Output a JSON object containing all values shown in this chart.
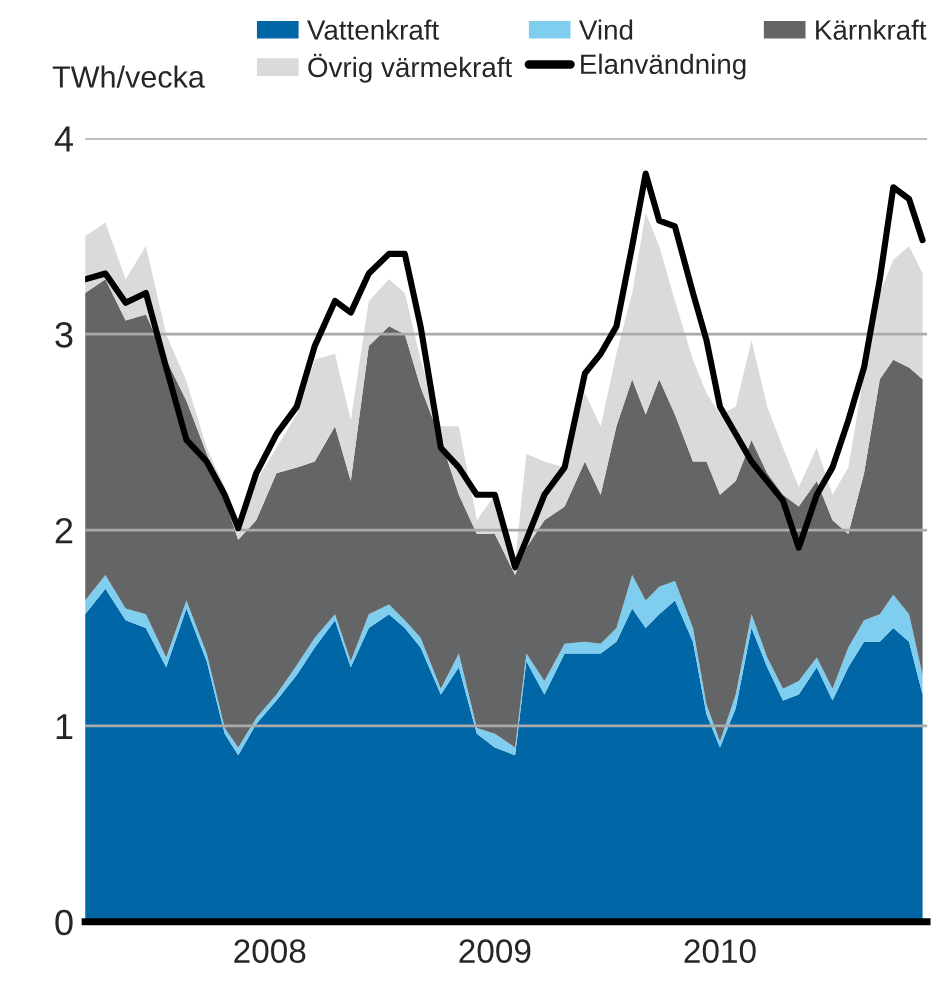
{
  "chart_data": {
    "type": "area",
    "stacked": true,
    "ylabel": "TWh/vecka",
    "x": [
      2007.68,
      2007.77,
      2007.86,
      2007.95,
      2008.04,
      2008.13,
      2008.22,
      2008.3,
      2008.36,
      2008.44,
      2008.53,
      2008.62,
      2008.7,
      2008.79,
      2008.86,
      2008.94,
      2009.03,
      2009.1,
      2009.17,
      2009.26,
      2009.34,
      2009.42,
      2009.5,
      2009.59,
      2009.64,
      2009.72,
      2009.81,
      2009.9,
      2009.97,
      2010.04,
      2010.11,
      2010.17,
      2010.23,
      2010.3,
      2010.38,
      2010.44,
      2010.5,
      2010.57,
      2010.64,
      2010.71,
      2010.78,
      2010.85,
      2010.93,
      2011.0,
      2011.07,
      2011.14,
      2011.21,
      2011.27,
      2011.34,
      2011.4
    ],
    "series": [
      {
        "name": "Vattenkraft",
        "color": "#0066a6",
        "values": [
          1.57,
          1.7,
          1.54,
          1.5,
          1.3,
          1.6,
          1.33,
          0.96,
          0.85,
          1.01,
          1.13,
          1.26,
          1.4,
          1.54,
          1.3,
          1.5,
          1.57,
          1.5,
          1.4,
          1.16,
          1.3,
          0.96,
          0.89,
          0.85,
          1.33,
          1.16,
          1.37,
          1.37,
          1.37,
          1.43,
          1.6,
          1.5,
          1.57,
          1.64,
          1.43,
          1.06,
          0.89,
          1.09,
          1.5,
          1.3,
          1.13,
          1.16,
          1.3,
          1.13,
          1.3,
          1.43,
          1.43,
          1.5,
          1.43,
          1.16
        ]
      },
      {
        "name": "Vind",
        "color": "#7fcdef",
        "values": [
          0.07,
          0.07,
          0.06,
          0.07,
          0.05,
          0.04,
          0.04,
          0.03,
          0.04,
          0.03,
          0.03,
          0.05,
          0.05,
          0.03,
          0.03,
          0.07,
          0.05,
          0.04,
          0.05,
          0.03,
          0.07,
          0.03,
          0.07,
          0.04,
          0.04,
          0.07,
          0.05,
          0.06,
          0.05,
          0.07,
          0.17,
          0.14,
          0.14,
          0.1,
          0.07,
          0.05,
          0.03,
          0.07,
          0.07,
          0.05,
          0.06,
          0.07,
          0.05,
          0.06,
          0.1,
          0.11,
          0.14,
          0.17,
          0.14,
          0.1
        ]
      },
      {
        "name": "Kärnkraft",
        "color": "#646567",
        "values": [
          1.57,
          1.51,
          1.47,
          1.53,
          1.52,
          1.02,
          1.02,
          1.16,
          1.06,
          1.01,
          1.13,
          1.01,
          0.9,
          0.96,
          0.92,
          1.37,
          1.42,
          1.46,
          1.28,
          1.27,
          0.81,
          0.99,
          1.02,
          0.88,
          0.54,
          0.82,
          0.7,
          0.92,
          0.76,
          1.03,
          1.0,
          0.95,
          1.06,
          0.85,
          0.85,
          1.24,
          1.26,
          1.09,
          0.89,
          0.94,
          0.99,
          0.89,
          0.9,
          0.86,
          0.58,
          0.75,
          1.2,
          1.2,
          1.26,
          1.51
        ]
      },
      {
        "name": "Övrig värmekraft",
        "color": "#d9dadc",
        "values": [
          0.29,
          0.29,
          0.21,
          0.35,
          0.13,
          0.1,
          0.03,
          0.07,
          0.03,
          0.2,
          0.13,
          0.27,
          0.52,
          0.37,
          0.31,
          0.23,
          0.24,
          0.21,
          0.14,
          0.07,
          0.35,
          0.07,
          0.2,
          0.07,
          0.48,
          0.3,
          0.2,
          0.35,
          0.35,
          0.37,
          0.44,
          1.03,
          0.68,
          0.58,
          0.52,
          0.35,
          0.41,
          0.38,
          0.51,
          0.34,
          0.24,
          0.1,
          0.17,
          0.13,
          0.34,
          0.51,
          0.44,
          0.51,
          0.62,
          0.54
        ]
      },
      {
        "name": "Elanvändning",
        "type": "line",
        "color": "#000000",
        "values": [
          3.28,
          3.31,
          3.16,
          3.21,
          2.83,
          2.46,
          2.35,
          2.18,
          2.01,
          2.29,
          2.49,
          2.63,
          2.94,
          3.17,
          3.11,
          3.31,
          3.41,
          3.41,
          3.04,
          2.42,
          2.32,
          2.18,
          2.18,
          1.81,
          1.95,
          2.18,
          2.32,
          2.8,
          2.9,
          3.04,
          3.45,
          3.82,
          3.58,
          3.55,
          3.21,
          2.97,
          2.63,
          2.49,
          2.35,
          2.25,
          2.15,
          1.91,
          2.18,
          2.32,
          2.56,
          2.83,
          3.28,
          3.75,
          3.69,
          3.48
        ]
      }
    ],
    "xlim": [
      2007.68,
      2011.42
    ],
    "xticks": [
      {
        "value": 2008.5,
        "label": "2008"
      },
      {
        "value": 2009.5,
        "label": "2009"
      },
      {
        "value": 2010.5,
        "label": "2010"
      }
    ],
    "ylim": [
      0,
      4
    ],
    "yticks": [
      0,
      1,
      2,
      3,
      4
    ],
    "grid": "y",
    "legend": "top"
  }
}
